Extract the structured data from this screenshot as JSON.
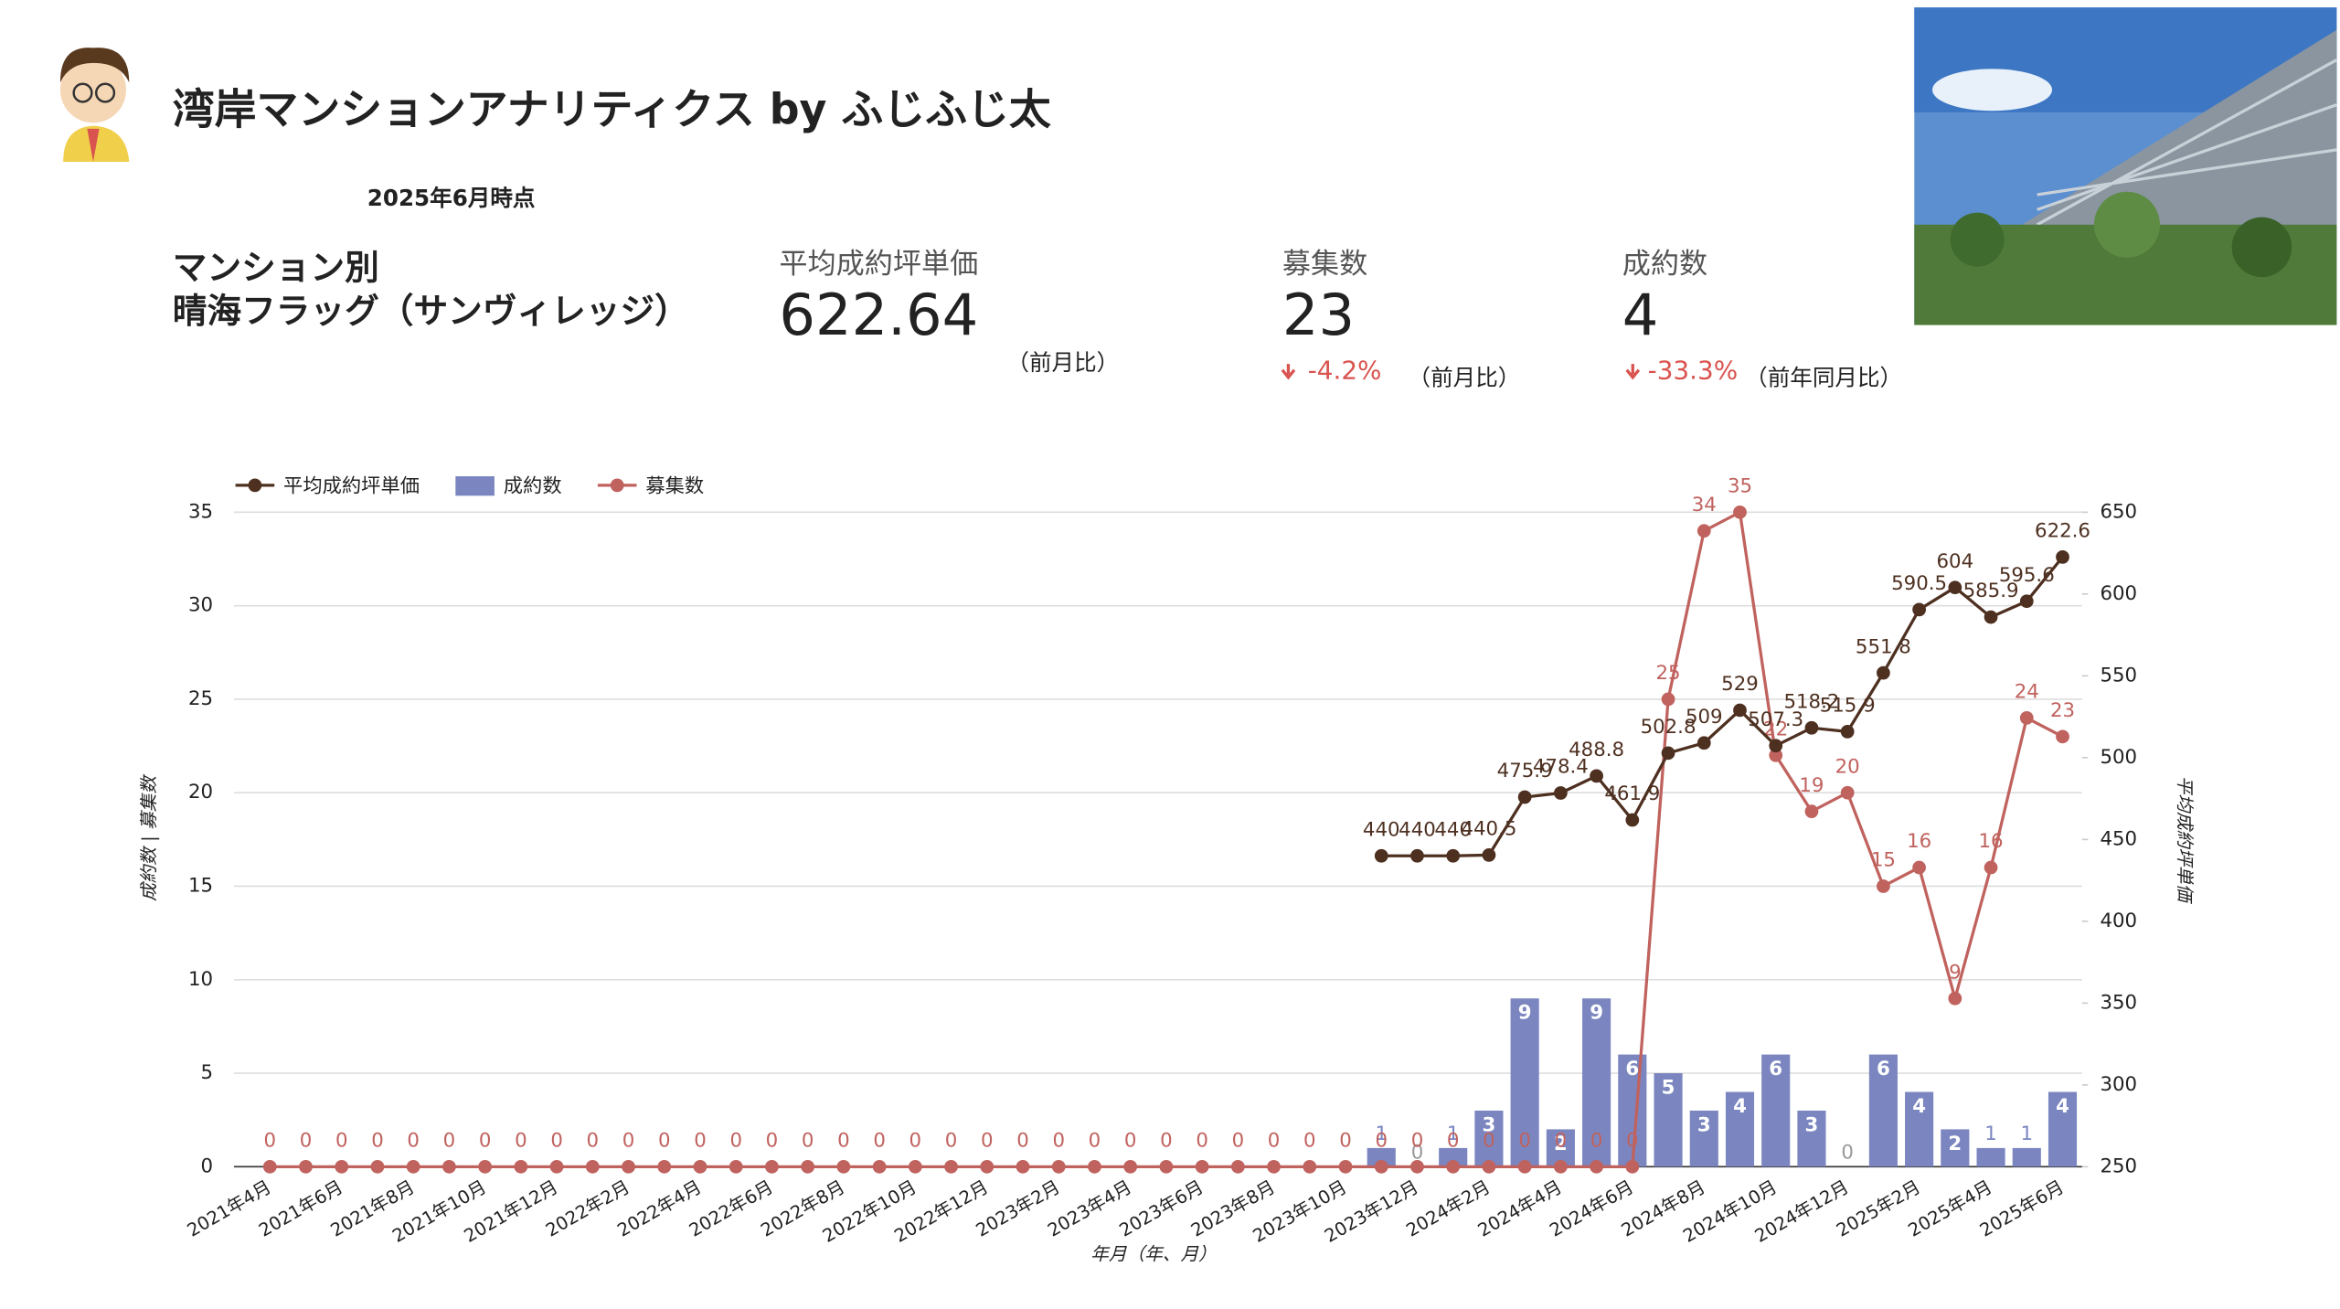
{
  "header": {
    "title": "湾岸マンションアナリティクス by ふじふじ太",
    "as_of": "2025年6月時点",
    "section": "マンション別",
    "property": "晴海フラッグ（サンヴィレッジ）"
  },
  "kpis": [
    {
      "label": "平均成約坪単価",
      "value": 622.64,
      "note": "（前月比）"
    },
    {
      "label": "募集数",
      "value": 23,
      "change": "-4.2%",
      "note": "（前月比）"
    },
    {
      "label": "成約数",
      "value": 4,
      "change": "-33.3%",
      "note": "（前年同月比）"
    }
  ],
  "chart_data": {
    "type": "combo",
    "x_label": "年月（年、月）",
    "y_label": "成約数 | 募集数",
    "y2_label": "平均成約坪単価",
    "categories": [
      "2021年4月",
      null,
      "2021年6月",
      null,
      "2021年8月",
      null,
      "2021年10月",
      null,
      "2021年12月",
      null,
      "2022年2月",
      null,
      "2022年4月",
      null,
      "2022年6月",
      null,
      "2022年8月",
      null,
      "2022年10月",
      null,
      "2022年12月",
      null,
      "2023年2月",
      null,
      "2023年4月",
      null,
      "2023年6月",
      null,
      "2023年8月",
      null,
      "2023年10月",
      null,
      "2023年12月",
      null,
      "2024年2月",
      null,
      "2024年4月",
      null,
      "2024年6月",
      null,
      "2024年8月",
      null,
      "2024年10月",
      null,
      "2024年12月",
      null,
      "2025年2月",
      null,
      "2025年4月",
      null,
      "2025年6月"
    ],
    "series": [
      {
        "name": "平均成約坪単価",
        "type": "line",
        "axis": "y2",
        "color": "#4e3021",
        "values": [
          null,
          null,
          null,
          null,
          null,
          null,
          null,
          null,
          null,
          null,
          null,
          null,
          null,
          null,
          null,
          null,
          null,
          null,
          null,
          null,
          null,
          null,
          null,
          null,
          null,
          null,
          null,
          null,
          null,
          null,
          null,
          440,
          440,
          440,
          440.5,
          475.9,
          478.4,
          488.8,
          461.9,
          502.8,
          509,
          529,
          507.3,
          518.2,
          515.9,
          551.8,
          590.5,
          604,
          585.9,
          595.6,
          622.6
        ]
      },
      {
        "name": "成約数",
        "type": "bar",
        "axis": "y",
        "color": "#7b86c0",
        "values": [
          null,
          null,
          null,
          null,
          null,
          null,
          null,
          null,
          null,
          null,
          null,
          null,
          null,
          null,
          null,
          null,
          null,
          null,
          null,
          null,
          null,
          null,
          null,
          null,
          null,
          null,
          null,
          null,
          null,
          null,
          null,
          1,
          0,
          1,
          3,
          9,
          2,
          9,
          6,
          5,
          3,
          4,
          6,
          3,
          0,
          6,
          4,
          2,
          1,
          1,
          4
        ]
      },
      {
        "name": "募集数",
        "type": "line",
        "axis": "y",
        "color": "#c0625e",
        "values": [
          0,
          0,
          0,
          0,
          0,
          0,
          0,
          0,
          0,
          0,
          0,
          0,
          0,
          0,
          0,
          0,
          0,
          0,
          0,
          0,
          0,
          0,
          0,
          0,
          0,
          0,
          0,
          0,
          0,
          0,
          0,
          0,
          0,
          0,
          0,
          0,
          0,
          0,
          0,
          25,
          34,
          35,
          22,
          19,
          20,
          15,
          16,
          9,
          16,
          24,
          23
        ]
      }
    ],
    "ylim": [
      0,
      35
    ],
    "yticks": [
      0,
      5,
      10,
      15,
      20,
      25,
      30,
      35
    ],
    "y2lim": [
      250,
      650
    ],
    "y2ticks": [
      250,
      300,
      350,
      400,
      450,
      500,
      550,
      600,
      650
    ],
    "grid": true,
    "legend": "top-left"
  }
}
